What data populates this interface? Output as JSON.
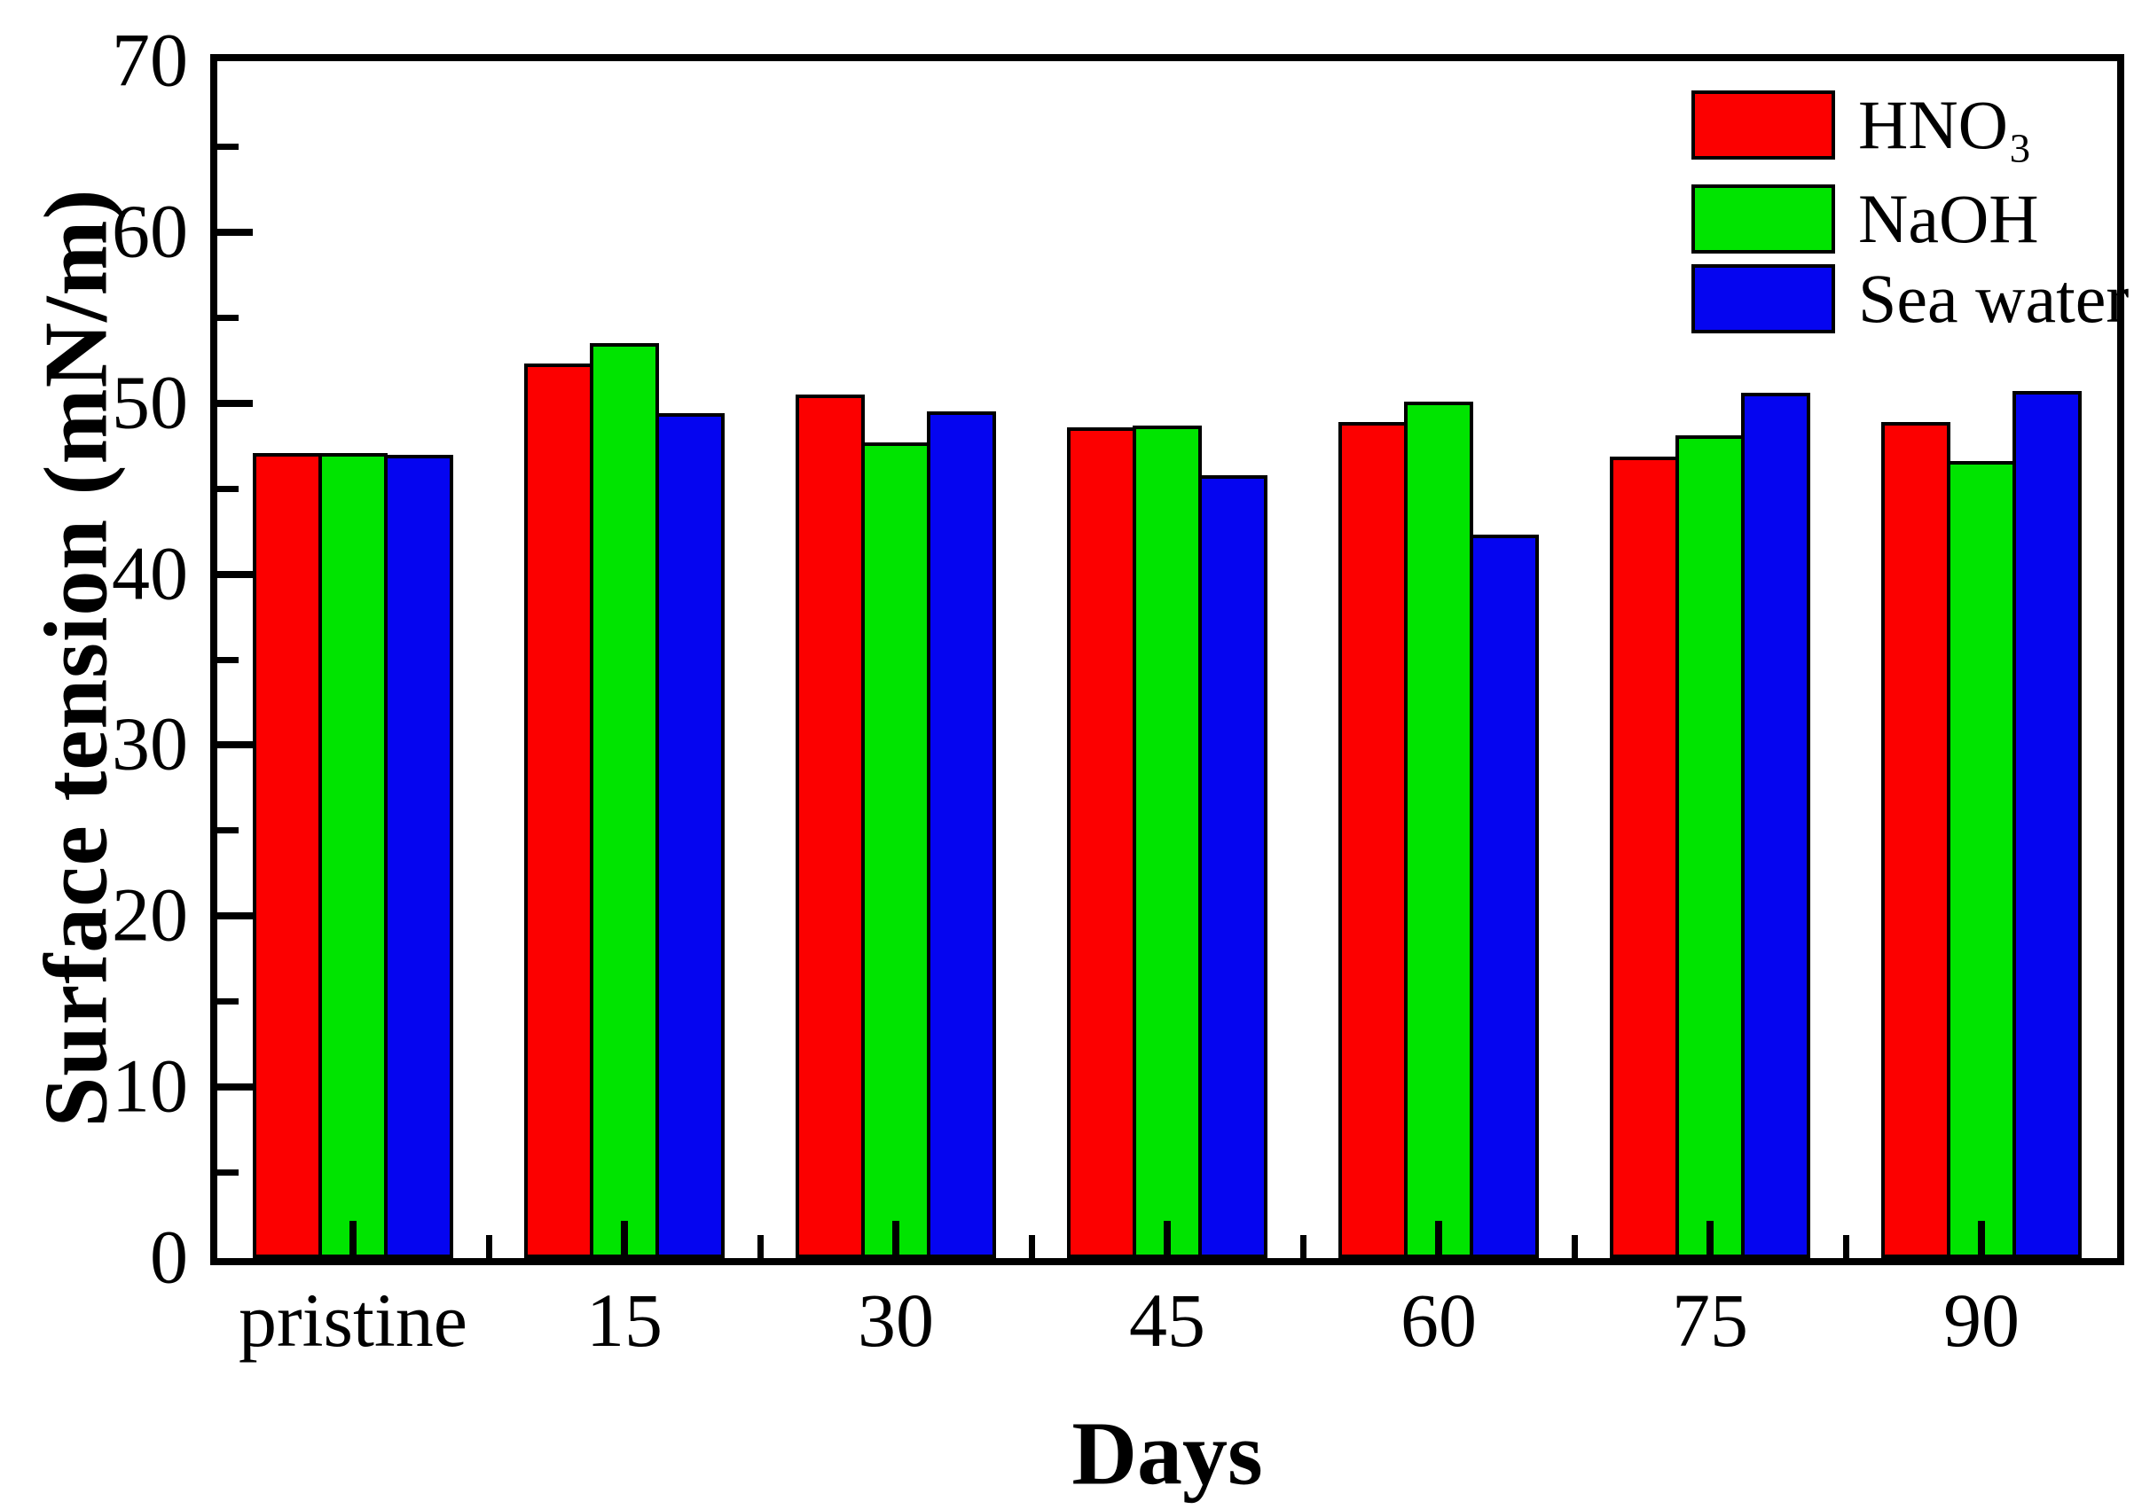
{
  "figure": {
    "background": "#ffffff",
    "axis_color": "#000000",
    "text_color": "#000000"
  },
  "chart_data": {
    "type": "bar",
    "title": "",
    "xlabel": "Days",
    "ylabel": "Surface tension (mN/m)",
    "categories": [
      "pristine",
      "15",
      "30",
      "45",
      "60",
      "75",
      "90"
    ],
    "series": [
      {
        "name": "HNO₃",
        "color": "#fc0000",
        "values": [
          47.1,
          52.3,
          50.5,
          48.6,
          48.9,
          46.9,
          48.9
        ]
      },
      {
        "name": "NaOH",
        "color": "#00e400",
        "values": [
          47.1,
          53.5,
          47.7,
          48.7,
          50.1,
          48.1,
          46.6
        ]
      },
      {
        "name": "Sea water",
        "color": "#0505f0",
        "values": [
          47.0,
          49.4,
          49.5,
          45.8,
          42.3,
          50.6,
          50.7
        ]
      }
    ],
    "ylim": [
      0,
      70
    ],
    "yticks": [
      0,
      10,
      20,
      30,
      40,
      50,
      60,
      70
    ],
    "minor_yticks": [
      5,
      15,
      25,
      35,
      45,
      55,
      65
    ],
    "bar_edge_color": "#000000",
    "grid": false,
    "legend_position": "top-right"
  }
}
